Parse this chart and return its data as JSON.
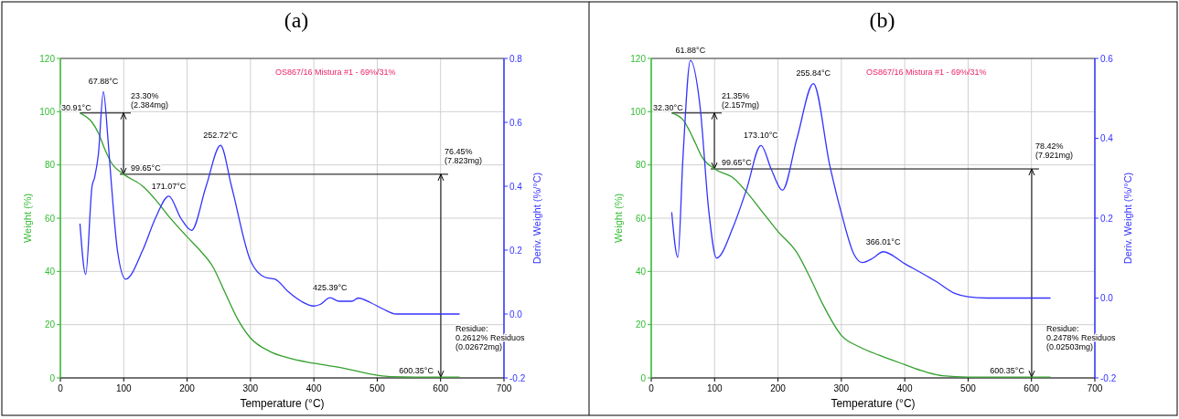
{
  "chart_data": [
    {
      "type": "line",
      "title": "(a)",
      "subtitle": "OS867/16 Mistura #1 - 69%/31%",
      "xlabel": "Temperature (°C)",
      "ylabel": "Weight (%)",
      "y2label": "Deriv. Weight (%/°C)",
      "xlim": [
        0,
        700
      ],
      "xticks": [
        0,
        100,
        200,
        300,
        400,
        500,
        600,
        700
      ],
      "ylim": [
        0,
        120
      ],
      "yticks": [
        0,
        20,
        40,
        60,
        80,
        100,
        120
      ],
      "y2lim": [
        -0.2,
        0.8
      ],
      "y2ticks": [
        {
          "value": -0.2,
          "label": "-0.2"
        },
        {
          "value": 0,
          "label": "0.0"
        },
        {
          "value": 0.2,
          "label": "0.2"
        },
        {
          "value": 0.4,
          "label": "0.4"
        },
        {
          "value": 0.6,
          "label": "0.6"
        },
        {
          "value": 0.8,
          "label": "0.8"
        }
      ],
      "grid": true,
      "series": [
        {
          "color": "#33a02c",
          "x": [
            30.91,
            50,
            60,
            70,
            80,
            100,
            130,
            150,
            170,
            200,
            220,
            240,
            260,
            280,
            300,
            330,
            360,
            400,
            450,
            500,
            520,
            600,
            630
          ],
          "values": [
            99.5,
            96,
            92,
            86,
            81,
            76.5,
            72,
            67,
            61,
            53,
            48,
            42,
            32,
            22,
            15,
            10,
            7.5,
            5.5,
            3.5,
            1,
            0.5,
            0.3,
            0.3
          ]
        },
        {
          "color": "#3333ff",
          "axis": "y2",
          "x": [
            30.91,
            40,
            50,
            54,
            60,
            67.88,
            75,
            80,
            90,
            103,
            130,
            150,
            171.07,
            190,
            207,
            230,
            252.72,
            270,
            300,
            323,
            339,
            360,
            380,
            400,
            410,
            425.39,
            440,
            460,
            470,
            490,
            510,
            530,
            630
          ],
          "values": [
            0.283,
            0.124,
            0.4,
            0.427,
            0.5,
            0.696,
            0.55,
            0.42,
            0.2,
            0.109,
            0.2,
            0.3,
            0.369,
            0.3,
            0.262,
            0.4,
            0.528,
            0.4,
            0.167,
            0.115,
            0.109,
            0.069,
            0.04,
            0.025,
            0.03,
            0.051,
            0.04,
            0.04,
            0.05,
            0.035,
            0.015,
            0,
            0
          ]
        }
      ],
      "annotations": [
        {
          "text": "30.91°C",
          "x": 30.91,
          "y": 99.5
        },
        {
          "text": "23.30%\n(2.384mg)",
          "x": 99.65,
          "y": 76.5
        },
        {
          "text": "99.65°C",
          "x": 99.65,
          "y": 76.5
        },
        "76.45%\n(7.823mg)",
        "Residue:\n0.2612% Residuos\n(0.02672mg)",
        {
          "text": "600.35°C",
          "x": 600.35,
          "y": 0.3
        },
        {
          "text": "67.88°C",
          "x": 67.88,
          "y": 107.5
        },
        {
          "text": "171.07°C",
          "x": 171.07,
          "y": 68.3
        },
        {
          "text": "252.72°C",
          "x": 252.72,
          "y": 87.4
        },
        {
          "text": "425.39°C",
          "x": 425.39,
          "y": 30.1
        }
      ]
    },
    {
      "type": "line",
      "title": "(b)",
      "subtitle": "OS867/16 Mistura #1 - 69%/31%",
      "xlabel": "Temperature (°C)",
      "ylabel": "Weight (%)",
      "y2label": "Deriv. Weight (%/°C)",
      "xlim": [
        0,
        700
      ],
      "xticks": [
        0,
        100,
        200,
        300,
        400,
        500,
        600,
        700
      ],
      "ylim": [
        0,
        120
      ],
      "yticks": [
        0,
        20,
        40,
        60,
        80,
        100,
        120
      ],
      "y2lim": [
        -0.2,
        0.6
      ],
      "y2ticks": [
        {
          "value": -0.2,
          "label": "-0.2"
        },
        {
          "value": 0,
          "label": "0.0"
        },
        {
          "value": 0.2,
          "label": "0.2"
        },
        {
          "value": 0.4,
          "label": "0.4"
        },
        {
          "value": 0.6,
          "label": "0.6"
        }
      ],
      "grid": true,
      "series": [
        {
          "color": "#33a02c",
          "x": [
            32.3,
            50,
            60,
            70,
            80,
            100,
            130,
            150,
            170,
            200,
            230,
            250,
            270,
            300,
            330,
            360,
            400,
            430,
            460,
            500,
            600,
            630
          ],
          "values": [
            99.5,
            97,
            93,
            88,
            83,
            78.5,
            75,
            70,
            64,
            55,
            47,
            38,
            28,
            16,
            11.5,
            8.5,
            5,
            2.5,
            0.8,
            0.3,
            0.3,
            0.3
          ]
        },
        {
          "color": "#3333ff",
          "axis": "y2",
          "x": [
            32.3,
            42,
            50,
            61.88,
            77,
            91,
            103,
            129,
            150,
            173.1,
            190,
            207,
            230,
            255.84,
            282,
            301,
            320,
            333,
            350,
            366.01,
            400,
            450,
            480,
            500,
            530,
            630
          ],
          "values": [
            0.215,
            0.102,
            0.35,
            0.595,
            0.48,
            0.215,
            0.1,
            0.177,
            0.27,
            0.382,
            0.32,
            0.27,
            0.4,
            0.537,
            0.33,
            0.207,
            0.109,
            0.089,
            0.1,
            0.116,
            0.086,
            0.041,
            0.011,
            0.003,
            0,
            0
          ]
        }
      ],
      "annotations": [
        {
          "text": "32.30°C",
          "x": 32.3,
          "y": 99.5
        },
        {
          "text": "21.35%\n(2.157mg)",
          "x": 99.65,
          "y": 78.5
        },
        {
          "text": "99.65°C",
          "x": 99.65,
          "y": 78.5
        },
        "78.42%\n(7.921mg)",
        "Residue:\n0.2478% Residuos\n(0.02503mg)",
        {
          "text": "600.35°C",
          "x": 600.35,
          "y": 0.3
        },
        {
          "text": "61.88°C",
          "x": 61.88,
          "y": 119.3
        },
        {
          "text": "173.10°C",
          "x": 173.1,
          "y": 87.3
        },
        {
          "text": "255.84°C",
          "x": 255.84,
          "y": 110.6
        },
        {
          "text": "366.01°C",
          "x": 366.01,
          "y": 47.4
        }
      ]
    }
  ]
}
